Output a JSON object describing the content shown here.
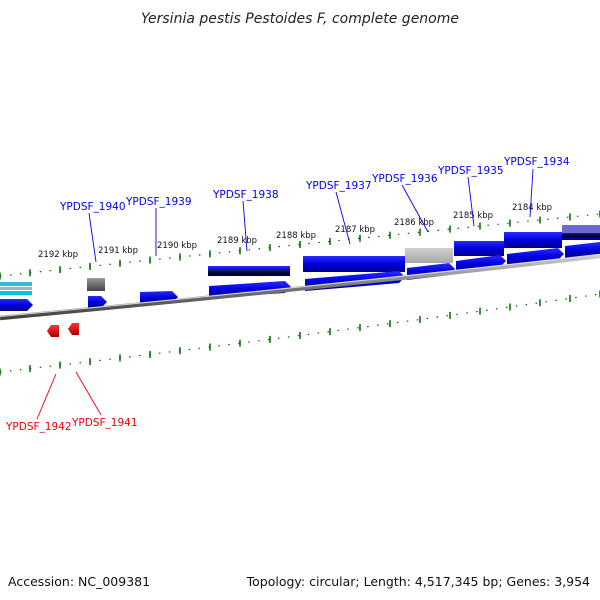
{
  "title": "Yersinia pestis Pestoides F, complete genome",
  "footer": {
    "accession": "Accession: NC_009381",
    "summary": "Topology: circular; Length: 4,517,345 bp; Genes: 3,954"
  },
  "kbp_labels": [
    "2192 kbp",
    "2191 kbp",
    "2190 kbp",
    "2189 kbp",
    "2188 kbp",
    "2187 kbp",
    "2186 kbp",
    "2185 kbp",
    "2184 kbp"
  ],
  "genes_forward": [
    "YPDSF_1940",
    "YPDSF_1939",
    "YPDSF_1938",
    "YPDSF_1937",
    "YPDSF_1936",
    "YPDSF_1935",
    "YPDSF_1934"
  ],
  "genes_reverse": [
    "YPDSF_1942",
    "YPDSF_1941"
  ],
  "colors": {
    "forward_gene": "#0000ee",
    "reverse_gene": "#ee0000",
    "backbone": "#888888",
    "ticks": "#006600",
    "pseudo": "#bbbbbb"
  }
}
